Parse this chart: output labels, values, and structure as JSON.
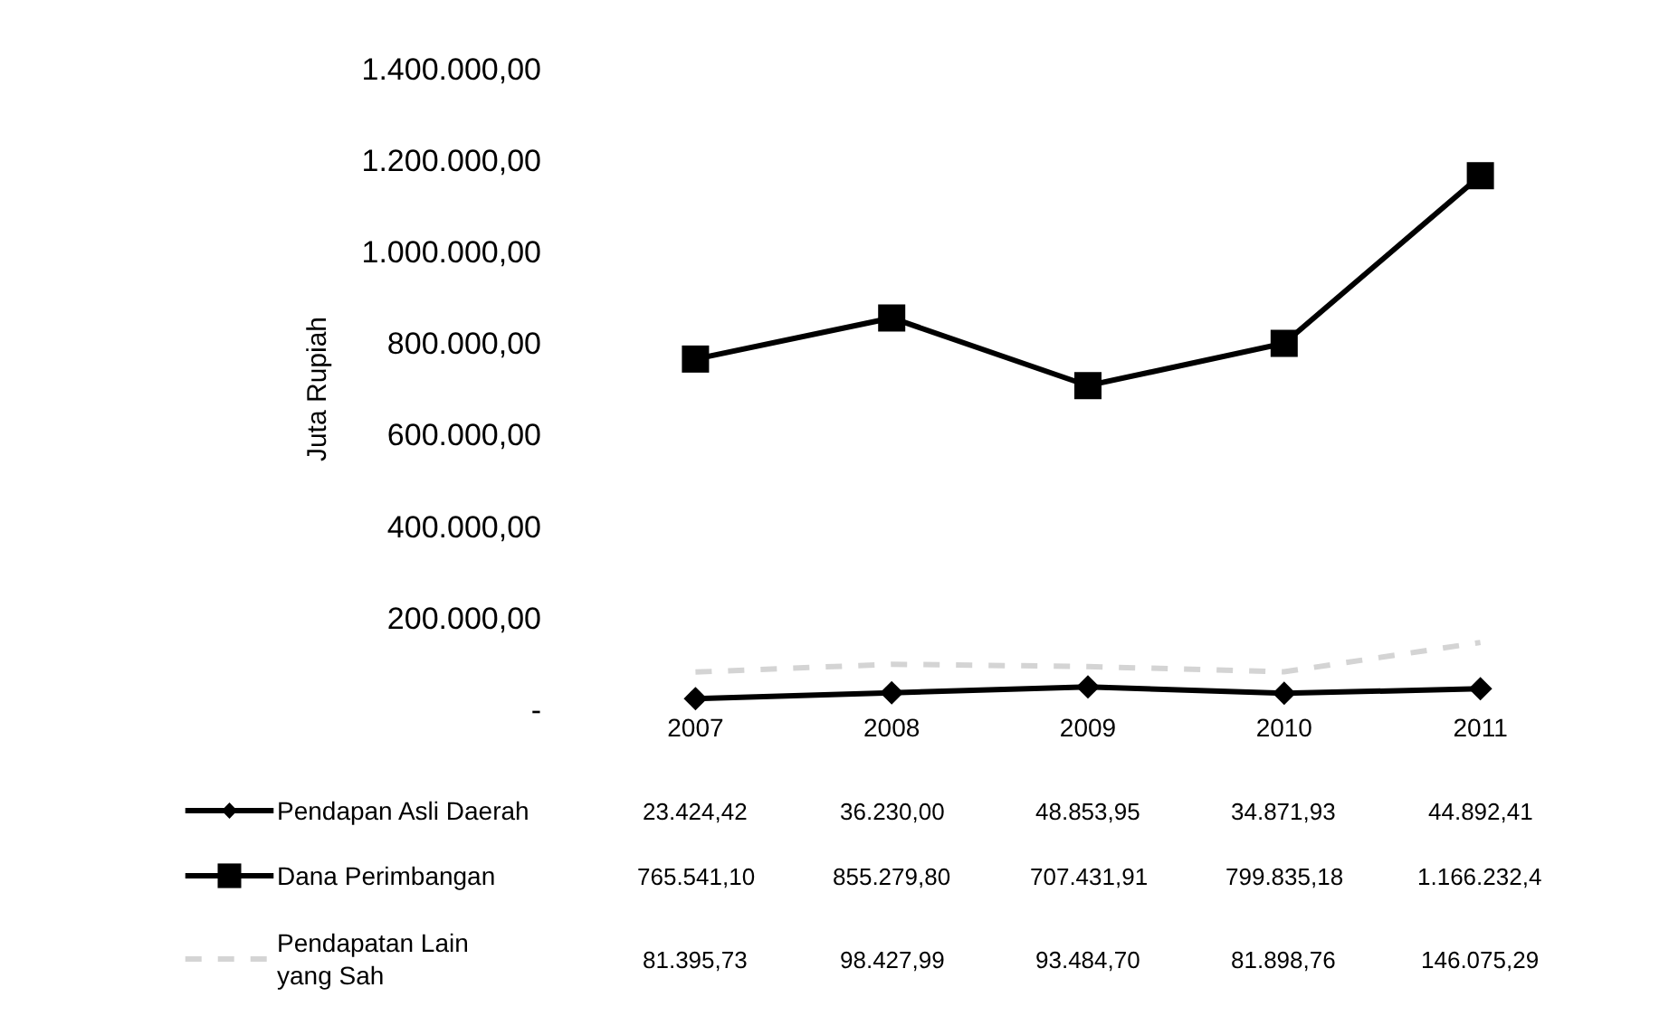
{
  "chart_data": {
    "type": "line",
    "ylabel": "Juta Rupiah",
    "categories": [
      "2007",
      "2008",
      "2009",
      "2010",
      "2011"
    ],
    "series": [
      {
        "name": "Pendapan Asli Daerah",
        "color": "#000000",
        "marker": "diamond",
        "values": [
          23424.42,
          36230.0,
          48853.95,
          34871.93,
          44892.41
        ],
        "value_labels": [
          "23.424,42",
          "36.230,00",
          "48.853,95",
          "34.871,93",
          "44.892,41"
        ]
      },
      {
        "name": "Dana Perimbangan",
        "color": "#000000",
        "marker": "square",
        "values": [
          765541.1,
          855279.8,
          707431.91,
          799835.18,
          1166232.4
        ],
        "value_labels": [
          "765.541,10",
          "855.279,80",
          "707.431,91",
          "799.835,18",
          "1.166.232,4"
        ]
      },
      {
        "name": "Pendapatan Lain yang Sah",
        "color": "#d4d4d4",
        "marker": "none",
        "line_style": "dashed",
        "values": [
          81395.73,
          98427.99,
          93484.7,
          81898.76,
          146075.29
        ],
        "value_labels": [
          "81.395,73",
          "98.427,99",
          "93.484,70",
          "81.898,76",
          "146.075,29"
        ]
      }
    ],
    "ylim": [
      0,
      1400000
    ],
    "yticks": [
      {
        "value": 0,
        "label": "-"
      },
      {
        "value": 200000,
        "label": "200.000,00"
      },
      {
        "value": 400000,
        "label": "400.000,00"
      },
      {
        "value": 600000,
        "label": "600.000,00"
      },
      {
        "value": 800000,
        "label": "800.000,00"
      },
      {
        "value": 1000000,
        "label": "1.000.000,00"
      },
      {
        "value": 1200000,
        "label": "1.200.000,00"
      },
      {
        "value": 1400000,
        "label": "1.400.000,00"
      }
    ],
    "legend": "bottom"
  }
}
